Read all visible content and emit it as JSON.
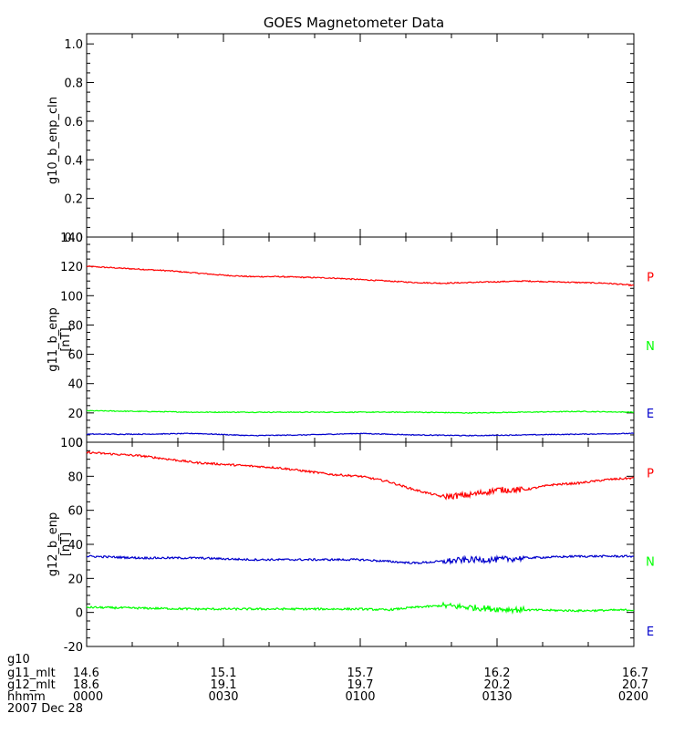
{
  "chart_data": {
    "type": "line",
    "title": "GOES Magnetometer Data",
    "date_label": "2007 Dec 28",
    "panels": [
      {
        "ylabel": "g10_b_enp_cln",
        "yunit": "",
        "ylim": [
          0,
          1
        ],
        "yticks": [
          0,
          0.2,
          0.4,
          0.6,
          0.8,
          1.0
        ],
        "ytick_labels": [
          "0.0",
          "0.2",
          "0.4",
          "0.6",
          "0.8",
          "1.0"
        ],
        "series": []
      },
      {
        "ylabel": "g11_b_enp",
        "yunit": "[nT]",
        "ylim": [
          0,
          140
        ],
        "yticks": [
          0,
          20,
          40,
          60,
          80,
          100,
          120,
          140
        ],
        "ytick_labels": [
          "0",
          "20",
          "40",
          "60",
          "80",
          "100",
          "120",
          "140"
        ],
        "series": [
          {
            "name": "P",
            "color": "#ff0000",
            "legend_y": 113,
            "noise": 0.4,
            "x": [
              0,
              6,
              12,
              18,
              24,
              30,
              36,
              42,
              48,
              54,
              60,
              66,
              72,
              78,
              84,
              90,
              96,
              102,
              108,
              114,
              120
            ],
            "values": [
              120,
              119,
              118,
              117,
              115.5,
              114,
              113,
              113,
              112.5,
              112,
              111,
              110,
              109,
              108.5,
              109,
              109.5,
              110,
              109.5,
              109,
              108.5,
              107
            ]
          },
          {
            "name": "N",
            "color": "#00ff00",
            "legend_y": 66,
            "noise": 0.3,
            "x": [
              0,
              12,
              24,
              36,
              48,
              60,
              72,
              84,
              96,
              108,
              120
            ],
            "values": [
              21.5,
              21,
              20.5,
              20.5,
              20.5,
              20.5,
              20.5,
              20,
              20.5,
              21,
              20.5
            ]
          },
          {
            "name": "E",
            "color": "#0000cc",
            "legend_y": 20,
            "noise": 0.3,
            "x": [
              0,
              12,
              24,
              36,
              48,
              60,
              72,
              84,
              96,
              108,
              120
            ],
            "values": [
              5.5,
              5.5,
              6,
              4.5,
              5,
              6,
              5,
              4.5,
              5,
              5.5,
              6
            ]
          }
        ]
      },
      {
        "ylabel": "g12_b_enp",
        "yunit": "[nT]",
        "ylim": [
          -20,
          100
        ],
        "yticks": [
          -20,
          0,
          20,
          40,
          60,
          80,
          100
        ],
        "ytick_labels": [
          "-20",
          "0",
          "20",
          "40",
          "60",
          "80",
          "100"
        ],
        "series": [
          {
            "name": "P",
            "color": "#ff0000",
            "legend_y": 82,
            "noise": 0.6,
            "x": [
              0,
              6,
              12,
              18,
              24,
              30,
              36,
              42,
              48,
              54,
              60,
              66,
              72,
              78,
              84,
              90,
              96,
              102,
              108,
              114,
              120
            ],
            "values": [
              94,
              93,
              92,
              90,
              88,
              87,
              86,
              85,
              83,
              81,
              80,
              77,
              72,
              68,
              69,
              72,
              72,
              75,
              76,
              78,
              79
            ]
          },
          {
            "name": "N",
            "color": "#00ff00",
            "legend_y": 30,
            "noise": 0.6,
            "x": [
              0,
              12,
              24,
              36,
              48,
              60,
              66,
              72,
              78,
              84,
              90,
              96,
              108,
              120
            ],
            "values": [
              3,
              2.5,
              2,
              2,
              2,
              2,
              1.5,
              3,
              4,
              3,
              2,
              1.5,
              1,
              1.5
            ]
          },
          {
            "name": "E",
            "color": "#0000cc",
            "legend_y": -11,
            "noise": 0.6,
            "x": [
              0,
              12,
              24,
              36,
              48,
              60,
              66,
              72,
              78,
              84,
              90,
              96,
              108,
              120
            ],
            "values": [
              33,
              32,
              32,
              31,
              31,
              31,
              30,
              29,
              30,
              31,
              31,
              32,
              33,
              33
            ]
          }
        ]
      }
    ],
    "x_ticks": {
      "minutes": [
        0,
        30,
        60,
        90,
        120
      ],
      "rows": [
        {
          "label": "g10",
          "values": [
            "",
            "",
            "",
            "",
            ""
          ]
        },
        {
          "label": "g11_mlt",
          "values": [
            "14.6",
            "15.1",
            "15.7",
            "16.2",
            "16.7"
          ]
        },
        {
          "label": "g12_mlt",
          "values": [
            "18.6",
            "19.1",
            "19.7",
            "20.2",
            "20.7"
          ]
        },
        {
          "label": "hhmm",
          "values": [
            "0000",
            "0030",
            "0100",
            "0130",
            "0200"
          ]
        }
      ]
    },
    "xlim": [
      0,
      120
    ]
  }
}
